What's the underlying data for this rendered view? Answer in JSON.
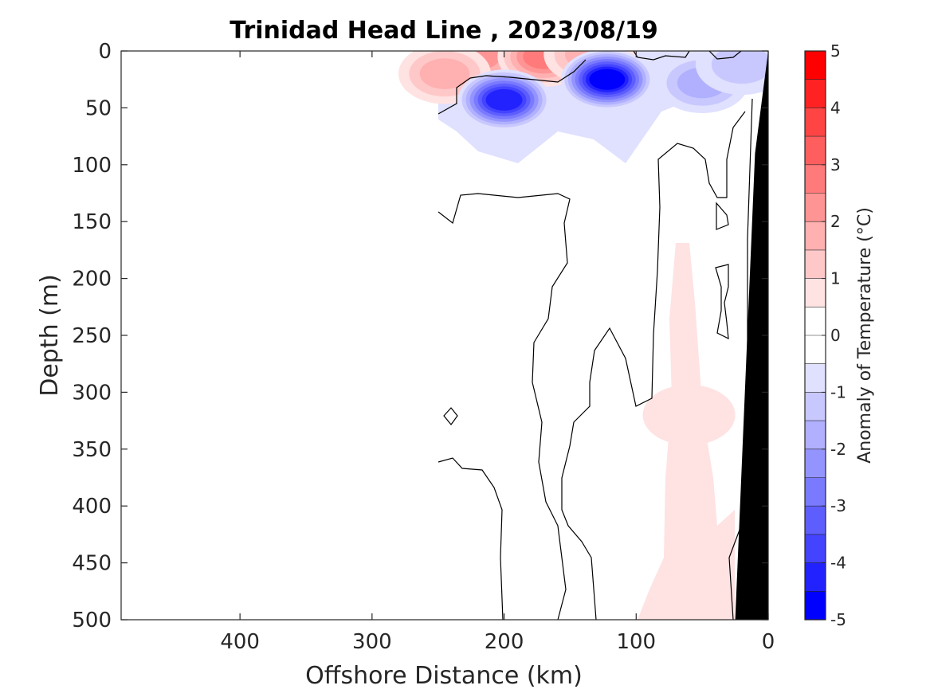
{
  "chart_data": {
    "type": "heatmap",
    "title": "Trinidad Head Line , 2023/08/19",
    "xlabel": "Offshore Distance (km)",
    "ylabel": "Depth (m)",
    "colorbar_label": "Anomaly of Temperature (°C)",
    "xlim": [
      490,
      0
    ],
    "ylim": [
      500,
      0
    ],
    "x_ticks": [
      400,
      300,
      200,
      100,
      0
    ],
    "y_ticks": [
      0,
      50,
      100,
      150,
      200,
      250,
      300,
      350,
      400,
      450,
      500
    ],
    "colorbar_range": [
      -5,
      5
    ],
    "colorbar_ticks": [
      5,
      4,
      3,
      2,
      1,
      0,
      -1,
      -2,
      -3,
      -4,
      -5
    ],
    "colorbar_levels": [
      {
        "min": 4.5,
        "max": 5.0,
        "color": "#ff0000"
      },
      {
        "min": 4.0,
        "max": 4.5,
        "color": "#ff2222"
      },
      {
        "min": 3.5,
        "max": 4.0,
        "color": "#ff4444"
      },
      {
        "min": 3.0,
        "max": 3.5,
        "color": "#ff5e5e"
      },
      {
        "min": 2.5,
        "max": 3.0,
        "color": "#ff7a7a"
      },
      {
        "min": 2.0,
        "max": 2.5,
        "color": "#ff9494"
      },
      {
        "min": 1.5,
        "max": 2.0,
        "color": "#ffb0b0"
      },
      {
        "min": 1.0,
        "max": 1.5,
        "color": "#ffc8c8"
      },
      {
        "min": 0.5,
        "max": 1.0,
        "color": "#ffe2e2"
      },
      {
        "min": 0.0,
        "max": 0.5,
        "color": "#ffffff"
      },
      {
        "min": -0.5,
        "max": 0.0,
        "color": "#ffffff"
      },
      {
        "min": -1.0,
        "max": -0.5,
        "color": "#e0e0ff"
      },
      {
        "min": -1.5,
        "max": -1.0,
        "color": "#c8c8ff"
      },
      {
        "min": -2.0,
        "max": -1.5,
        "color": "#b0b0ff"
      },
      {
        "min": -2.5,
        "max": -2.0,
        "color": "#9494ff"
      },
      {
        "min": -3.0,
        "max": -2.5,
        "color": "#7a7aff"
      },
      {
        "min": -3.5,
        "max": -3.0,
        "color": "#5e5eff"
      },
      {
        "min": -4.0,
        "max": -3.5,
        "color": "#4444ff"
      },
      {
        "min": -4.5,
        "max": -4.0,
        "color": "#2222ff"
      },
      {
        "min": -5.0,
        "max": -4.5,
        "color": "#0000ff"
      }
    ],
    "warm_blobs": [
      {
        "x": 220,
        "depth": 5,
        "value": 2.2
      },
      {
        "x": 170,
        "depth": 5,
        "value": 2.5
      },
      {
        "x": 245,
        "depth": 20,
        "value": 1.5
      },
      {
        "x": 135,
        "depth": 3,
        "value": 1.5
      },
      {
        "x": 60,
        "depth": 320,
        "value": 0.8
      }
    ],
    "cold_blobs": [
      {
        "x": 200,
        "depth": 43,
        "value": -4.2
      },
      {
        "x": 122,
        "depth": 25,
        "value": -4.6
      },
      {
        "x": 50,
        "depth": 28,
        "value": -1.6
      },
      {
        "x": 20,
        "depth": 12,
        "value": -1.2
      }
    ],
    "bathymetry": [
      [
        0,
        0
      ],
      [
        10,
        90
      ],
      [
        25,
        500
      ]
    ],
    "colors": {
      "land": "#000000",
      "contour": "#000000",
      "axis": "#262626"
    }
  }
}
